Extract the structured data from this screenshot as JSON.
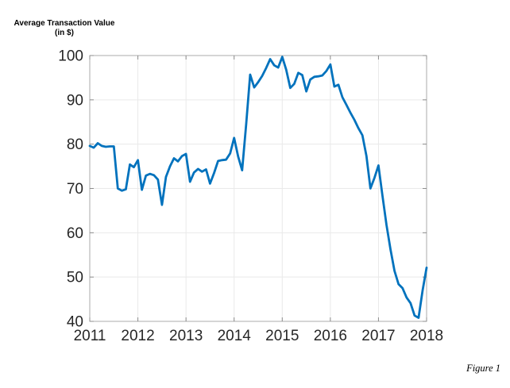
{
  "figure": {
    "title": "Average Transaction Value (in $)",
    "caption": "Figure 1"
  },
  "chart_data": {
    "type": "line",
    "title": "Average Transaction Value (in $)",
    "xlabel": "",
    "ylabel": "Average Transaction Value (in $)",
    "xlim": [
      2011,
      2018
    ],
    "ylim": [
      40,
      100
    ],
    "x_ticks": [
      2011,
      2012,
      2013,
      2014,
      2015,
      2016,
      2017,
      2018
    ],
    "y_ticks": [
      40,
      50,
      60,
      70,
      80,
      90,
      100
    ],
    "grid": true,
    "legend": "none",
    "line_color": "#0072BD",
    "axis_color": "#ababab",
    "tick_color": "#8c8c8c",
    "grid_color": "#e9e9e9",
    "label_color": "#262626",
    "interval": "monthly",
    "series": [
      {
        "name": "Average Transaction Value",
        "x": [
          2011.0,
          2011.0833,
          2011.1667,
          2011.25,
          2011.3333,
          2011.4167,
          2011.5,
          2011.5833,
          2011.6667,
          2011.75,
          2011.8333,
          2011.9167,
          2012.0,
          2012.0833,
          2012.1667,
          2012.25,
          2012.3333,
          2012.4167,
          2012.5,
          2012.5833,
          2012.6667,
          2012.75,
          2012.8333,
          2012.9167,
          2013.0,
          2013.0833,
          2013.1667,
          2013.25,
          2013.3333,
          2013.4167,
          2013.5,
          2013.5833,
          2013.6667,
          2013.75,
          2013.8333,
          2013.9167,
          2014.0,
          2014.0833,
          2014.1667,
          2014.25,
          2014.3333,
          2014.4167,
          2014.5,
          2014.5833,
          2014.6667,
          2014.75,
          2014.8333,
          2014.9167,
          2015.0,
          2015.0833,
          2015.1667,
          2015.25,
          2015.3333,
          2015.4167,
          2015.5,
          2015.5833,
          2015.6667,
          2015.75,
          2015.8333,
          2015.9167,
          2016.0,
          2016.0833,
          2016.1667,
          2016.25,
          2016.3333,
          2016.4167,
          2016.5,
          2016.5833,
          2016.6667,
          2016.75,
          2016.8333,
          2016.9167,
          2017.0,
          2017.0833,
          2017.1667,
          2017.25,
          2017.3333,
          2017.4167,
          2017.5,
          2017.5833,
          2017.6667,
          2017.75,
          2017.8333,
          2017.9167,
          2018.0
        ],
        "values": [
          79.6,
          79.2,
          80.2,
          79.6,
          79.4,
          79.5,
          79.5,
          70.0,
          69.5,
          69.8,
          75.4,
          74.8,
          76.4,
          69.7,
          72.9,
          73.3,
          73.0,
          72.0,
          66.3,
          72.6,
          75.0,
          76.8,
          76.1,
          77.3,
          77.8,
          71.5,
          73.6,
          74.4,
          73.8,
          74.3,
          71.1,
          73.5,
          76.2,
          76.4,
          76.5,
          77.9,
          81.4,
          77.2,
          74.1,
          84.5,
          95.7,
          92.8,
          94.0,
          95.4,
          97.2,
          99.2,
          97.8,
          97.3,
          99.7,
          96.8,
          92.7,
          93.6,
          96.1,
          95.6,
          91.9,
          94.6,
          95.2,
          95.3,
          95.5,
          96.5,
          98.0,
          93.0,
          93.4,
          90.6,
          88.9,
          87.1,
          85.5,
          83.6,
          82.0,
          77.3,
          70.0,
          72.4,
          75.2,
          68.3,
          61.8,
          56.2,
          51.4,
          48.4,
          47.5,
          45.4,
          44.1,
          41.3,
          40.8,
          47.0,
          52.1
        ]
      }
    ]
  }
}
